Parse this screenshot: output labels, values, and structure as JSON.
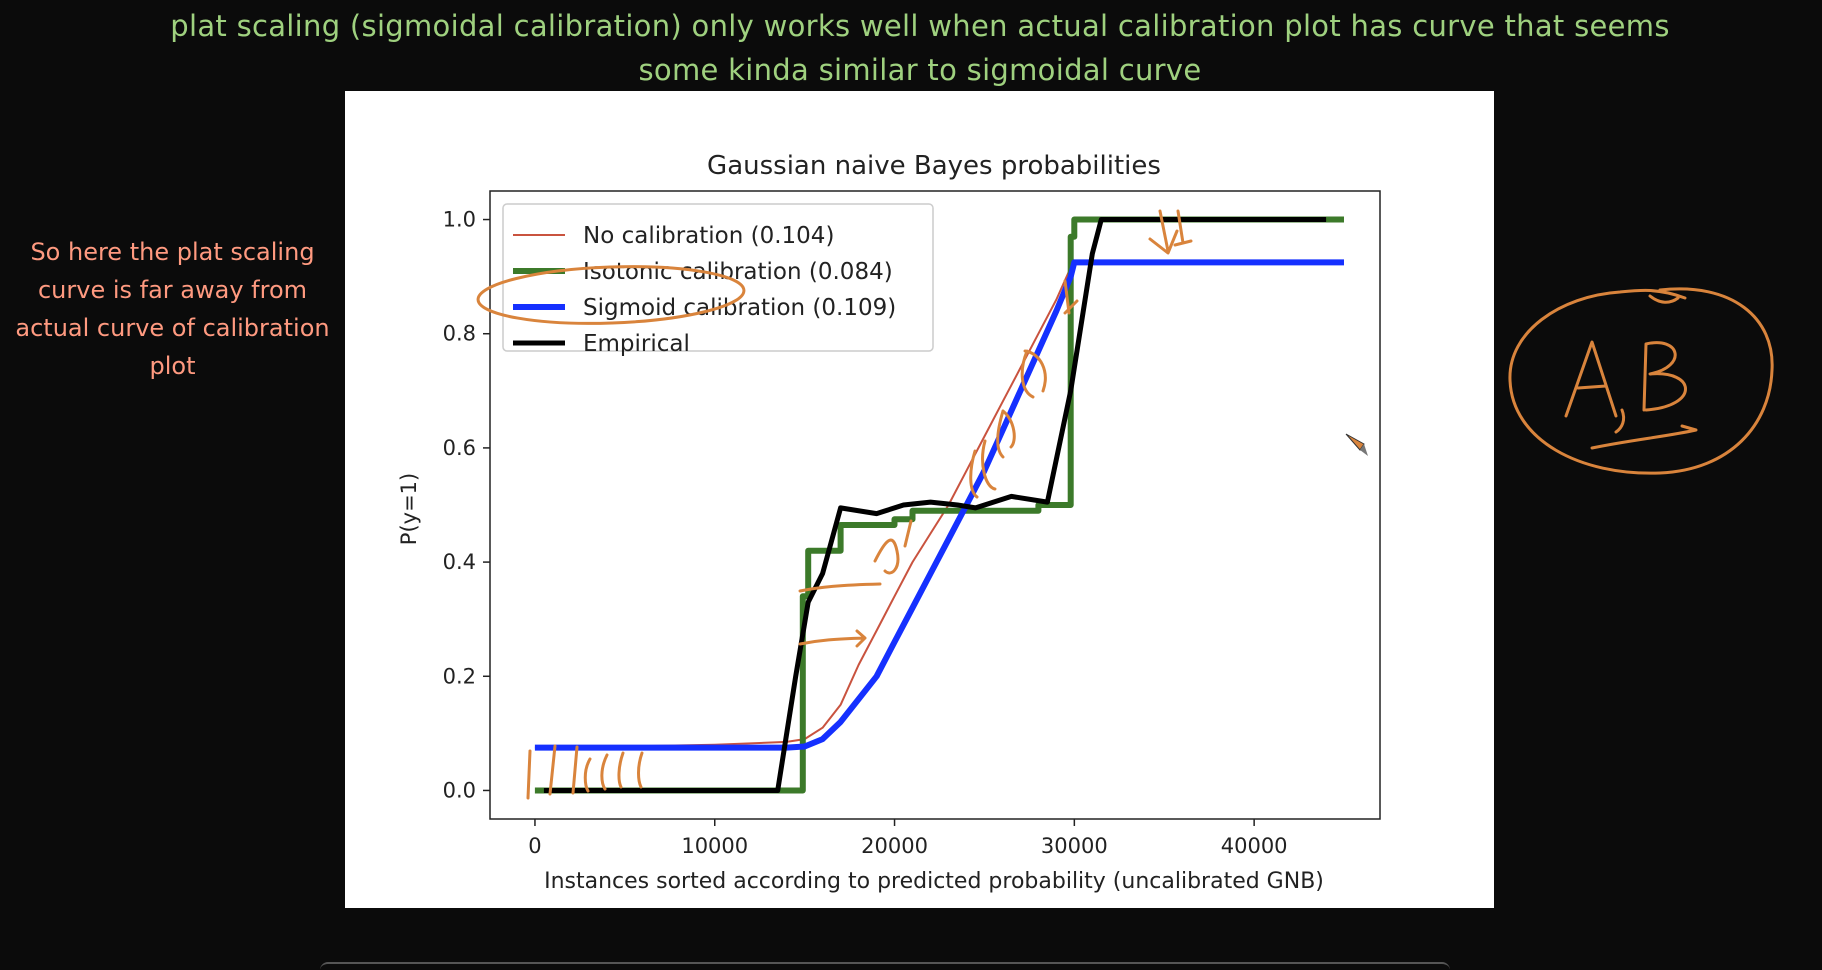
{
  "annotations": {
    "top_line1": "plat scaling (sigmoidal calibration) only works well when actual calibration plot has curve that seems",
    "top_line2": "some kinda similar to sigmoidal curve",
    "left_note": [
      "So here the plat scaling",
      "curve is far away from",
      "actual curve of calibration",
      "plot"
    ],
    "handwritten_right": "A,B"
  },
  "colors": {
    "annotation_green": "#9fd17f",
    "annotation_salmon": "#ff9a80",
    "ink_orange": "#d9843c",
    "no_calibration": "#c9533f",
    "isotonic": "#3c7a2a",
    "sigmoid": "#1530ff",
    "empirical": "#000000"
  },
  "chart_data": {
    "type": "line",
    "title": "Gaussian naive Bayes probabilities",
    "xlabel": "Instances sorted according to predicted probability (uncalibrated GNB)",
    "ylabel": "P(y=1)",
    "xlim": [
      -2500,
      47000
    ],
    "ylim": [
      -0.05,
      1.05
    ],
    "xticks": [
      0,
      10000,
      20000,
      30000,
      40000
    ],
    "xtick_labels": [
      "0",
      "10000",
      "20000",
      "30000",
      "40000"
    ],
    "yticks": [
      0.0,
      0.2,
      0.4,
      0.6,
      0.8,
      1.0
    ],
    "ytick_labels": [
      "0.0",
      "0.2",
      "0.4",
      "0.6",
      "0.8",
      "1.0"
    ],
    "legend_position": "upper-left",
    "series": [
      {
        "name": "No calibration (0.104)",
        "color": "#c9533f",
        "width": 2,
        "points": [
          [
            0,
            0.075
          ],
          [
            5000,
            0.077
          ],
          [
            10000,
            0.08
          ],
          [
            14000,
            0.085
          ],
          [
            15000,
            0.09
          ],
          [
            16000,
            0.11
          ],
          [
            17000,
            0.15
          ],
          [
            18000,
            0.22
          ],
          [
            19000,
            0.28
          ],
          [
            20000,
            0.34
          ],
          [
            21000,
            0.4
          ],
          [
            22000,
            0.45
          ],
          [
            23000,
            0.5
          ],
          [
            24000,
            0.56
          ],
          [
            25000,
            0.62
          ],
          [
            26000,
            0.68
          ],
          [
            27000,
            0.74
          ],
          [
            28000,
            0.8
          ],
          [
            29000,
            0.86
          ],
          [
            30000,
            0.93
          ]
        ]
      },
      {
        "name": "Isotonic calibration (0.084)",
        "color": "#3c7a2a",
        "width": 6,
        "points": [
          [
            0,
            0
          ],
          [
            14900,
            0
          ],
          [
            14900,
            0.34
          ],
          [
            15200,
            0.34
          ],
          [
            15200,
            0.42
          ],
          [
            17000,
            0.42
          ],
          [
            17000,
            0.465
          ],
          [
            20000,
            0.465
          ],
          [
            20000,
            0.475
          ],
          [
            21000,
            0.475
          ],
          [
            21000,
            0.49
          ],
          [
            28000,
            0.49
          ],
          [
            28000,
            0.5
          ],
          [
            29800,
            0.5
          ],
          [
            29800,
            0.97
          ],
          [
            30000,
            0.97
          ],
          [
            30000,
            1.0
          ],
          [
            45000,
            1.0
          ]
        ]
      },
      {
        "name": "Sigmoid calibration (0.109)",
        "color": "#1530ff",
        "width": 6,
        "points": [
          [
            0,
            0.075
          ],
          [
            14000,
            0.075
          ],
          [
            15000,
            0.077
          ],
          [
            16000,
            0.09
          ],
          [
            17000,
            0.12
          ],
          [
            18000,
            0.16
          ],
          [
            19000,
            0.2
          ],
          [
            20000,
            0.26
          ],
          [
            21000,
            0.32
          ],
          [
            22000,
            0.38
          ],
          [
            23000,
            0.44
          ],
          [
            24000,
            0.5
          ],
          [
            25000,
            0.56
          ],
          [
            26000,
            0.63
          ],
          [
            27000,
            0.7
          ],
          [
            28000,
            0.77
          ],
          [
            29000,
            0.84
          ],
          [
            29800,
            0.9
          ],
          [
            30000,
            0.925
          ],
          [
            45000,
            0.925
          ]
        ]
      },
      {
        "name": "Empirical",
        "color": "#000000",
        "width": 5,
        "points": [
          [
            500,
            0
          ],
          [
            13500,
            0
          ],
          [
            14500,
            0.2
          ],
          [
            15200,
            0.33
          ],
          [
            16000,
            0.38
          ],
          [
            17000,
            0.495
          ],
          [
            19000,
            0.485
          ],
          [
            20500,
            0.5
          ],
          [
            22000,
            0.505
          ],
          [
            23500,
            0.5
          ],
          [
            24500,
            0.495
          ],
          [
            26500,
            0.515
          ],
          [
            28500,
            0.505
          ],
          [
            29800,
            0.7
          ],
          [
            31000,
            0.94
          ],
          [
            31500,
            1.0
          ],
          [
            44000,
            1.0
          ]
        ]
      }
    ]
  }
}
